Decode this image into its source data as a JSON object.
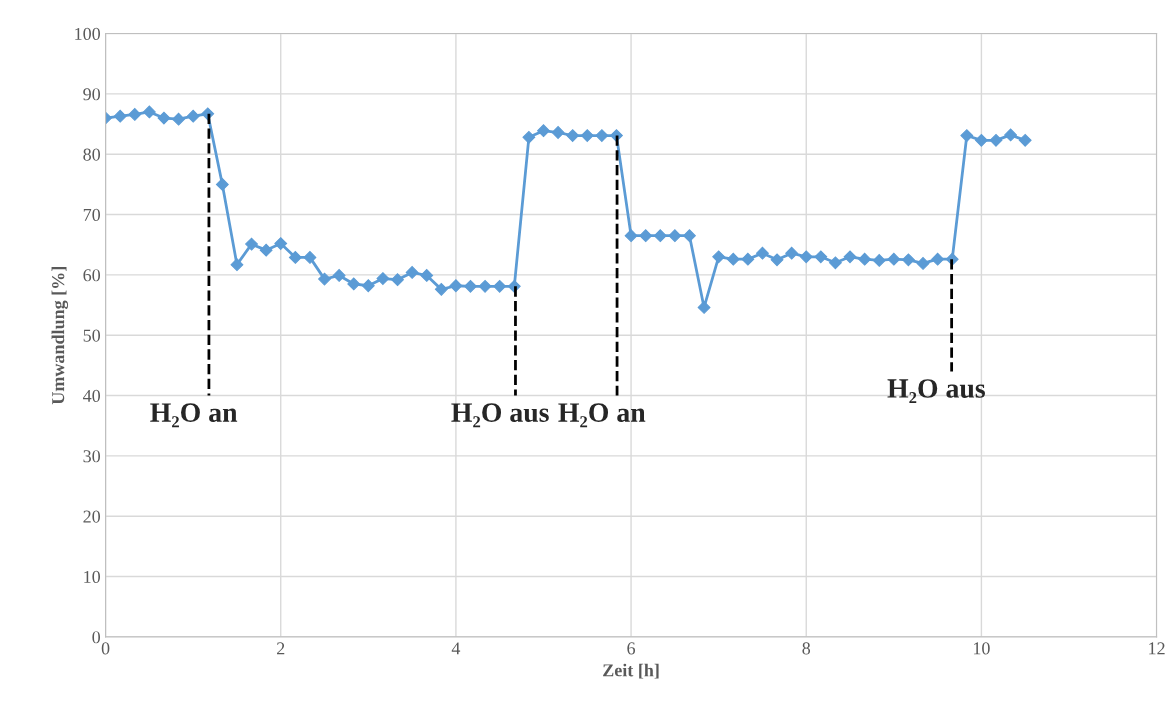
{
  "chart_data": {
    "type": "line",
    "xlabel": "Zeit [h]",
    "ylabel": "Umwandlung [%]",
    "x": [
      0,
      0.1667,
      0.3333,
      0.5,
      0.6667,
      0.8333,
      1.0,
      1.1667,
      1.3333,
      1.5,
      1.6667,
      1.8333,
      2.0,
      2.1667,
      2.3333,
      2.5,
      2.6667,
      2.8333,
      3.0,
      3.1667,
      3.3333,
      3.5,
      3.6667,
      3.8333,
      4.0,
      4.1667,
      4.3333,
      4.5,
      4.6667,
      4.8333,
      5.0,
      5.1667,
      5.3333,
      5.5,
      5.6667,
      5.8333,
      6.0,
      6.1667,
      6.3333,
      6.5,
      6.6667,
      6.8333,
      7.0,
      7.1667,
      7.3333,
      7.5,
      7.6667,
      7.8333,
      8.0,
      8.1667,
      8.3333,
      8.5,
      8.6667,
      8.8333,
      9.0,
      9.1667,
      9.3333,
      9.5,
      9.6667,
      9.8333,
      10.0,
      10.1667,
      10.3333,
      10.5
    ],
    "series": [
      {
        "color": "#5b9bd5",
        "values": [
          86,
          86.3,
          86.6,
          87,
          86,
          85.8,
          86.3,
          86.7,
          75,
          61.7,
          65.1,
          64.1,
          65.2,
          62.9,
          62.9,
          59.3,
          59.9,
          58.5,
          58.2,
          59.4,
          59.2,
          60.4,
          59.9,
          57.6,
          58.2,
          58.1,
          58.1,
          58.1,
          58.1,
          82.8,
          83.9,
          83.6,
          83.1,
          83.1,
          83.1,
          83.1,
          66.5,
          66.5,
          66.5,
          66.5,
          66.5,
          54.6,
          63,
          62.6,
          62.6,
          63.6,
          62.5,
          63.6,
          63,
          63,
          62,
          63,
          62.6,
          62.4,
          62.6,
          62.5,
          61.9,
          62.6,
          62.6,
          83.1,
          82.3,
          82.3,
          83.2,
          82.3
        ]
      },
      {
        "color": "#000000",
        "x": [
          1.18,
          1.18
        ],
        "values": [
          86.7,
          40
        ],
        "marker": "none",
        "line_style": "dashed"
      },
      {
        "color": "#000000",
        "x": [
          4.68,
          4.68
        ],
        "values": [
          58.1,
          40
        ],
        "marker": "none",
        "line_style": "dashed"
      },
      {
        "color": "#000000",
        "x": [
          5.84,
          5.84
        ],
        "values": [
          83.1,
          40
        ],
        "marker": "none",
        "line_style": "dashed"
      },
      {
        "color": "#000000",
        "x": [
          9.66,
          9.66
        ],
        "values": [
          62.6,
          44
        ],
        "marker": "none",
        "line_style": "dashed"
      }
    ],
    "xlim": [
      0,
      12
    ],
    "xticks": [
      0,
      2,
      4,
      6,
      8,
      10,
      12
    ],
    "ylim": [
      0,
      100
    ],
    "yticks": [
      0,
      10,
      20,
      30,
      40,
      50,
      60,
      70,
      80,
      90,
      100
    ],
    "grid": true,
    "marker": "diamond",
    "line_style": "solid",
    "annotations": [
      {
        "text": "H₂O an",
        "x": 1.18,
        "y": 40
      },
      {
        "text": "H₂O aus",
        "x": 4.68,
        "y": 40
      },
      {
        "text": "H₂O an",
        "x": 5.84,
        "y": 40
      },
      {
        "text": "H₂O aus",
        "x": 9.66,
        "y": 44
      }
    ]
  }
}
